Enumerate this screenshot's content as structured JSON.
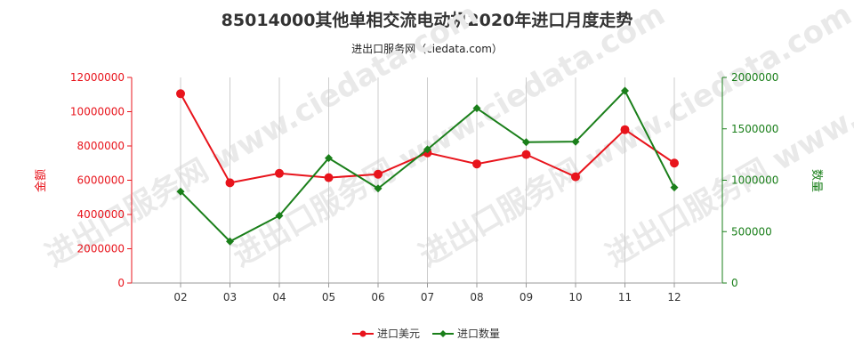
{
  "header": {
    "title": "85014000其他单相交流电动机2020年进口月度走势",
    "subtitle": "进出口服务网（ciedata.com）"
  },
  "watermark": "进出口服务网 www.ciedata.com",
  "chart_data": {
    "type": "line",
    "categories": [
      "02",
      "03",
      "04",
      "05",
      "06",
      "07",
      "08",
      "09",
      "10",
      "11",
      "12"
    ],
    "series": [
      {
        "name": "进口美元",
        "axis": "left",
        "color": "#e8141c",
        "values": [
          11050000,
          5850000,
          6400000,
          6150000,
          6350000,
          7600000,
          6950000,
          7500000,
          6200000,
          8950000,
          7000000
        ]
      },
      {
        "name": "进口数量",
        "axis": "right",
        "color": "#1a7f1a",
        "values": [
          890000,
          405000,
          655000,
          1215000,
          920000,
          1300000,
          1700000,
          1370000,
          1375000,
          1870000,
          930000
        ]
      }
    ],
    "left_axis": {
      "label": "金额",
      "ylim": [
        0,
        12000000
      ],
      "ticks": [
        "0",
        "2000000",
        "4000000",
        "6000000",
        "8000000",
        "10000000",
        "12000000"
      ],
      "color": "#e8141c"
    },
    "right_axis": {
      "label": "数量",
      "ylim": [
        0,
        2000000
      ],
      "ticks": [
        "0",
        "500000",
        "1000000",
        "1500000",
        "2000000"
      ],
      "color": "#1a7f1a"
    },
    "grid": "vertical",
    "legend_position": "bottom-center"
  }
}
